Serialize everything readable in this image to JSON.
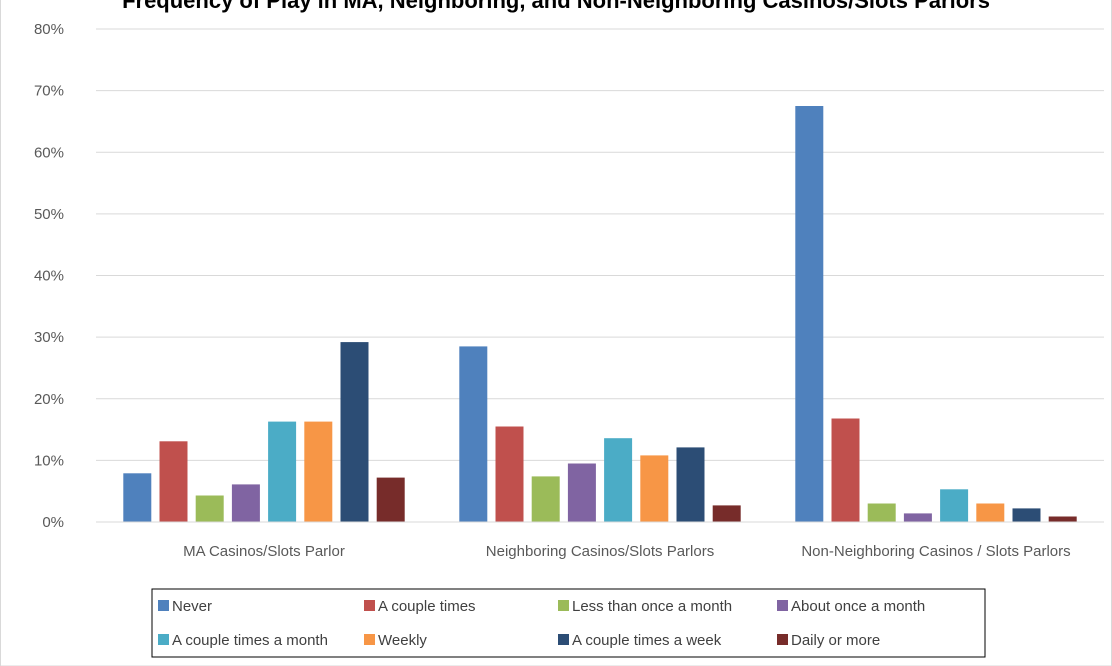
{
  "chart_data": {
    "type": "bar",
    "title": "Frequency of Play in MA, Neighboring, and Non-Neighboring Casinos/Slots Parlors",
    "categories": [
      "MA Casinos/Slots Parlor",
      "Neighboring Casinos/Slots Parlors",
      "Non-Neighboring Casinos / Slots Parlors"
    ],
    "ylim": [
      0,
      80
    ],
    "yticks": [
      0,
      10,
      20,
      30,
      40,
      50,
      60,
      70,
      80
    ],
    "ytick_suffix": "%",
    "grid": true,
    "legend_position": "bottom",
    "series": [
      {
        "name": "Never",
        "color": "#4f81bd",
        "values": [
          7.9,
          28.5,
          67.5
        ]
      },
      {
        "name": "A couple times",
        "color": "#c0504d",
        "values": [
          13.1,
          15.5,
          16.8
        ]
      },
      {
        "name": "Less than once a month",
        "color": "#9bbb59",
        "values": [
          4.3,
          7.4,
          3.0
        ]
      },
      {
        "name": "About once a month",
        "color": "#8064a2",
        "values": [
          6.1,
          9.5,
          1.4
        ]
      },
      {
        "name": "A couple times a month",
        "color": "#4bacc6",
        "values": [
          16.3,
          13.6,
          5.3
        ]
      },
      {
        "name": "Weekly",
        "color": "#f79646",
        "values": [
          16.3,
          10.8,
          3.0
        ]
      },
      {
        "name": "A couple times a week",
        "color": "#2c4d75",
        "values": [
          29.2,
          12.1,
          2.2
        ]
      },
      {
        "name": "Daily or more",
        "color": "#772c2a",
        "values": [
          7.2,
          2.7,
          0.9
        ]
      }
    ]
  }
}
